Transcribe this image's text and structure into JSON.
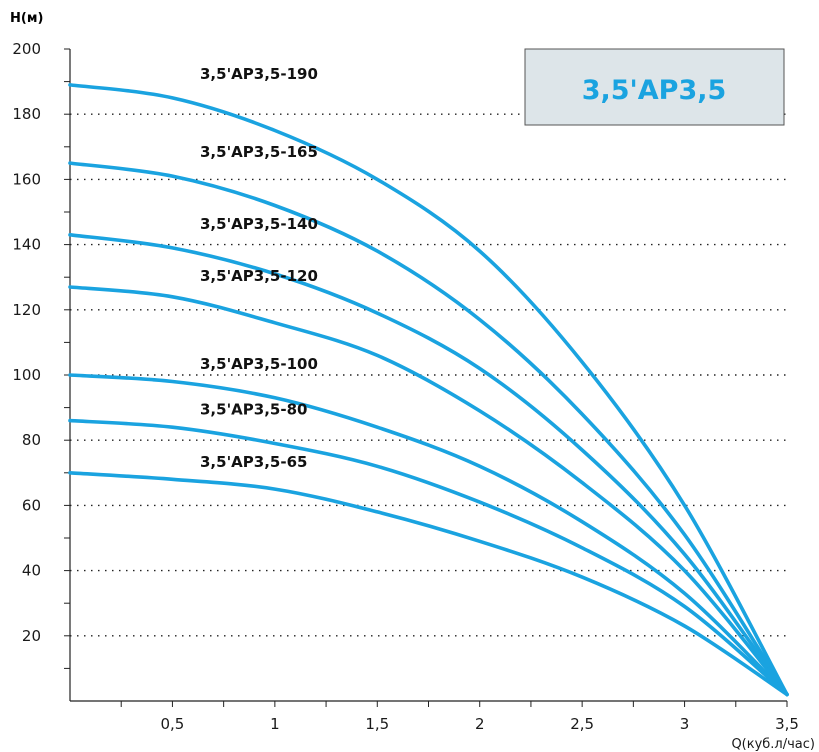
{
  "chart_data": {
    "type": "line",
    "badge": "3,5'AP3,5",
    "ylabel": "H(м)",
    "xlabel": "Q(куб.л/час)",
    "xlim": [
      0,
      3.5
    ],
    "ylim": [
      0,
      200
    ],
    "x_ticks": [
      {
        "v": 0.5,
        "label": "0,5"
      },
      {
        "v": 1,
        "label": "1"
      },
      {
        "v": 1.5,
        "label": "1,5"
      },
      {
        "v": 2,
        "label": "2"
      },
      {
        "v": 2.5,
        "label": "2,5"
      },
      {
        "v": 3,
        "label": "3"
      },
      {
        "v": 3.5,
        "label": "3,5"
      }
    ],
    "y_ticks": [
      {
        "v": 20,
        "label": "20"
      },
      {
        "v": 40,
        "label": "40"
      },
      {
        "v": 60,
        "label": "60"
      },
      {
        "v": 80,
        "label": "80"
      },
      {
        "v": 100,
        "label": "100"
      },
      {
        "v": 120,
        "label": "120"
      },
      {
        "v": 140,
        "label": "140"
      },
      {
        "v": 160,
        "label": "160"
      },
      {
        "v": 180,
        "label": "180"
      },
      {
        "v": 200,
        "label": "200"
      }
    ],
    "grid": "dotted horizontal at 20-unit intervals",
    "line_color": "#1aa3e0",
    "series": [
      {
        "name": "3,5'AP3,5-190",
        "x": [
          0,
          0.5,
          1,
          1.5,
          2,
          2.5,
          3,
          3.5
        ],
        "y": [
          189,
          185,
          175,
          160,
          138,
          104,
          60,
          2
        ]
      },
      {
        "name": "3,5'AP3,5-165",
        "x": [
          0,
          0.5,
          1,
          1.5,
          2,
          2.5,
          3,
          3.5
        ],
        "y": [
          165,
          161,
          152,
          138,
          117,
          88,
          51,
          2
        ]
      },
      {
        "name": "3,5'AP3,5-140",
        "x": [
          0,
          0.5,
          1,
          1.5,
          2,
          2.5,
          3,
          3.5
        ],
        "y": [
          143,
          139,
          131,
          119,
          102,
          77,
          45,
          2
        ]
      },
      {
        "name": "3,5'AP3,5-120",
        "x": [
          0,
          0.5,
          1,
          1.5,
          2,
          2.5,
          3,
          3.5
        ],
        "y": [
          127,
          124,
          116,
          106,
          89,
          67,
          40,
          2
        ]
      },
      {
        "name": "3,5'AP3,5-100",
        "x": [
          0,
          0.5,
          1,
          1.5,
          2,
          2.5,
          3,
          3.5
        ],
        "y": [
          100,
          98,
          93,
          84,
          72,
          55,
          33,
          2
        ]
      },
      {
        "name": "3,5'AP3,5-80",
        "x": [
          0,
          0.5,
          1,
          1.5,
          2,
          2.5,
          3,
          3.5
        ],
        "y": [
          86,
          84,
          79,
          72,
          61,
          47,
          29,
          2
        ]
      },
      {
        "name": "3,5'AP3,5-65",
        "x": [
          0,
          0.5,
          1,
          1.5,
          2,
          2.5,
          3,
          3.5
        ],
        "y": [
          70,
          68,
          65,
          58,
          49,
          38,
          23,
          2
        ]
      }
    ]
  }
}
